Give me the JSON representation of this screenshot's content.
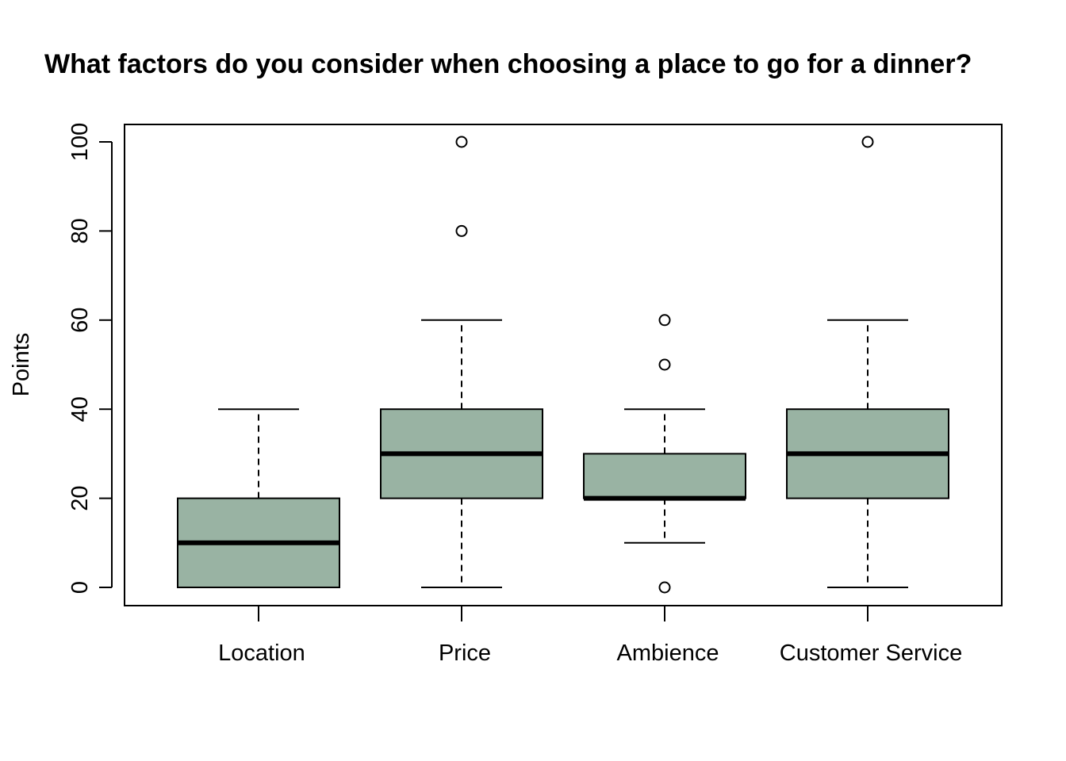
{
  "chart_data": {
    "type": "boxplot",
    "title": "What factors do you consider when choosing a place to go for a dinner?",
    "xlabel": "",
    "ylabel": "Points",
    "ylim": [
      -4,
      104
    ],
    "y_ticks": [
      0,
      20,
      40,
      60,
      80,
      100
    ],
    "grid": false,
    "legend": "none",
    "categories": [
      "Location",
      "Price",
      "Ambience",
      "Customer Service"
    ],
    "boxes": [
      {
        "category": "Location",
        "whisker_low": 0,
        "q1": 0,
        "median": 10,
        "q3": 20,
        "whisker_high": 40,
        "outliers": []
      },
      {
        "category": "Price",
        "whisker_low": 0,
        "q1": 20,
        "median": 30,
        "q3": 40,
        "whisker_high": 60,
        "outliers": [
          80,
          100
        ]
      },
      {
        "category": "Ambience",
        "whisker_low": 10,
        "q1": 20,
        "median": 20,
        "q3": 30,
        "whisker_high": 40,
        "outliers": [
          0,
          50,
          60
        ]
      },
      {
        "category": "Customer Service",
        "whisker_low": 0,
        "q1": 20,
        "median": 30,
        "q3": 40,
        "whisker_high": 60,
        "outliers": [
          100
        ]
      }
    ],
    "box_color": "#99b3a3",
    "line_color": "#000000"
  }
}
